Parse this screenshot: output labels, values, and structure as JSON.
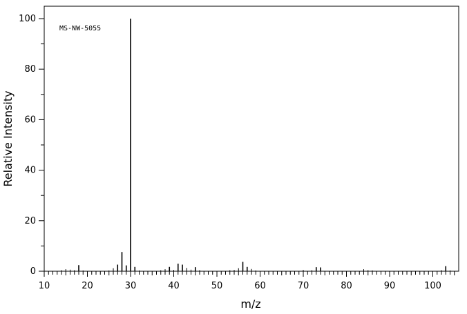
{
  "chart_data": {
    "type": "bar",
    "title": "",
    "annotation": "MS-NW-5055",
    "xlabel": "m/z",
    "ylabel": "Relative Intensity",
    "xlim": [
      10,
      106
    ],
    "ylim": [
      0,
      100
    ],
    "x_ticks": [
      10,
      20,
      30,
      40,
      50,
      60,
      70,
      80,
      90,
      100
    ],
    "y_ticks": [
      0,
      20,
      40,
      60,
      80,
      100
    ],
    "grid": false,
    "legend": "none",
    "series": [
      {
        "x": [
          14,
          15,
          16,
          17,
          18,
          19,
          25,
          26,
          27,
          28,
          29,
          30,
          31,
          32,
          37,
          38,
          39,
          40,
          41,
          42,
          43,
          44,
          45,
          46,
          53,
          54,
          55,
          56,
          57,
          58,
          59,
          70,
          72,
          73,
          74,
          84,
          85,
          86,
          102,
          103,
          104
        ],
        "values": [
          0.4,
          0.8,
          0.6,
          0.4,
          2.4,
          0.3,
          0.3,
          1.2,
          2.6,
          7.6,
          2.3,
          100,
          1.7,
          0.3,
          0.4,
          0.8,
          1.7,
          0.5,
          3.0,
          2.6,
          1.3,
          0.6,
          1.6,
          0.4,
          0.4,
          0.5,
          1.2,
          3.7,
          1.7,
          0.9,
          0.3,
          0.5,
          0.4,
          1.6,
          1.5,
          0.8,
          0.4,
          0.3,
          0.4,
          2.0,
          0.3
        ]
      }
    ]
  }
}
